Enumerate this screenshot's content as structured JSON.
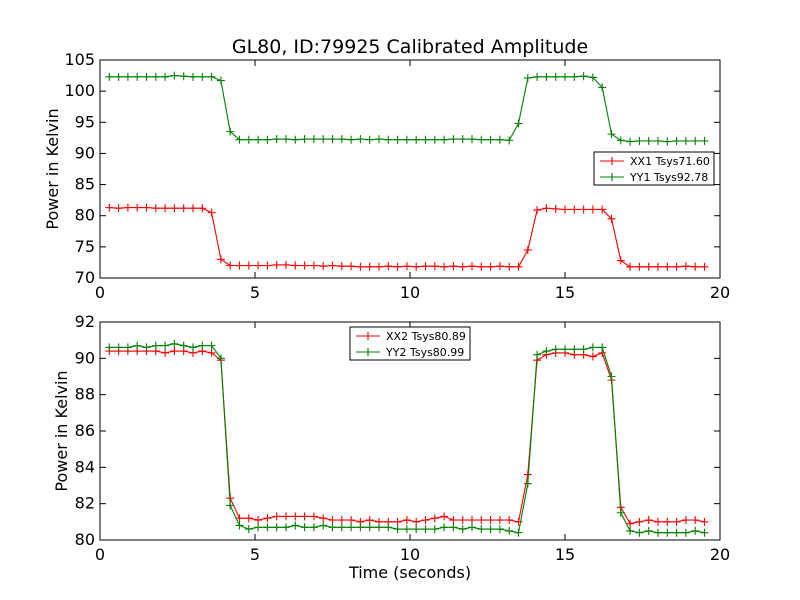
{
  "figure": {
    "title": "GL80, ID:79925 Calibrated Amplitude",
    "background": "#ffffff"
  },
  "chart_data": [
    {
      "type": "line",
      "title": "GL80, ID:79925 Calibrated Amplitude",
      "xlabel": "",
      "ylabel": "Power in Kelvin",
      "xlim": [
        0,
        20
      ],
      "ylim": [
        70,
        105
      ],
      "xticks": [
        0,
        5,
        10,
        15,
        20
      ],
      "yticks": [
        70,
        75,
        80,
        85,
        90,
        95,
        100,
        105
      ],
      "grid": false,
      "legend_position": "center-right",
      "x": [
        0.3,
        0.6,
        0.9,
        1.2,
        1.5,
        1.8,
        2.1,
        2.4,
        2.7,
        3.0,
        3.3,
        3.6,
        3.9,
        4.2,
        4.5,
        4.8,
        5.1,
        5.4,
        5.7,
        6.0,
        6.3,
        6.6,
        6.9,
        7.2,
        7.5,
        7.8,
        8.1,
        8.4,
        8.7,
        9.0,
        9.3,
        9.6,
        9.9,
        10.2,
        10.5,
        10.8,
        11.1,
        11.4,
        11.7,
        12.0,
        12.3,
        12.6,
        12.9,
        13.2,
        13.5,
        13.8,
        14.1,
        14.4,
        14.7,
        15.0,
        15.3,
        15.6,
        15.9,
        16.2,
        16.5,
        16.8,
        17.1,
        17.4,
        17.7,
        18.0,
        18.3,
        18.6,
        18.9,
        19.2,
        19.5
      ],
      "series": [
        {
          "name": "XX1 Tsys71.60",
          "color": "#ff0000",
          "values": [
            81.3,
            81.2,
            81.3,
            81.3,
            81.3,
            81.2,
            81.2,
            81.2,
            81.2,
            81.2,
            81.2,
            80.5,
            73.0,
            72.0,
            72.0,
            72.0,
            72.0,
            72.0,
            72.1,
            72.1,
            72.0,
            72.0,
            72.0,
            71.9,
            72.0,
            71.9,
            71.9,
            71.8,
            71.8,
            71.8,
            71.9,
            71.8,
            71.9,
            71.8,
            71.9,
            71.9,
            71.8,
            71.9,
            71.8,
            71.9,
            71.8,
            71.8,
            71.9,
            71.8,
            71.8,
            74.5,
            80.9,
            81.2,
            81.1,
            81.0,
            81.0,
            81.0,
            81.0,
            81.0,
            79.5,
            72.8,
            71.8,
            71.8,
            71.8,
            71.8,
            71.8,
            71.8,
            71.9,
            71.8,
            71.8
          ]
        },
        {
          "name": "YY1 Tsys92.78",
          "color": "#008000",
          "values": [
            102.3,
            102.3,
            102.3,
            102.3,
            102.3,
            102.3,
            102.3,
            102.5,
            102.4,
            102.3,
            102.3,
            102.3,
            101.7,
            93.5,
            92.2,
            92.2,
            92.2,
            92.2,
            92.3,
            92.3,
            92.2,
            92.3,
            92.3,
            92.3,
            92.3,
            92.3,
            92.2,
            92.3,
            92.2,
            92.3,
            92.2,
            92.2,
            92.2,
            92.2,
            92.2,
            92.2,
            92.2,
            92.3,
            92.3,
            92.3,
            92.2,
            92.2,
            92.2,
            92.1,
            94.8,
            102.1,
            102.3,
            102.3,
            102.3,
            102.3,
            102.3,
            102.4,
            102.2,
            100.6,
            93.1,
            92.1,
            91.9,
            92.0,
            92.0,
            92.0,
            91.9,
            92.0,
            92.0,
            92.0,
            92.0
          ]
        }
      ]
    },
    {
      "type": "line",
      "title": "",
      "xlabel": "Time (seconds)",
      "ylabel": "Power in Kelvin",
      "xlim": [
        0,
        20
      ],
      "ylim": [
        80,
        92
      ],
      "xticks": [
        0,
        5,
        10,
        15,
        20
      ],
      "yticks": [
        80,
        82,
        84,
        86,
        88,
        90,
        92
      ],
      "grid": false,
      "legend_position": "top-center",
      "x": [
        0.3,
        0.6,
        0.9,
        1.2,
        1.5,
        1.8,
        2.1,
        2.4,
        2.7,
        3.0,
        3.3,
        3.6,
        3.9,
        4.2,
        4.5,
        4.8,
        5.1,
        5.4,
        5.7,
        6.0,
        6.3,
        6.6,
        6.9,
        7.2,
        7.5,
        7.8,
        8.1,
        8.4,
        8.7,
        9.0,
        9.3,
        9.6,
        9.9,
        10.2,
        10.5,
        10.8,
        11.1,
        11.4,
        11.7,
        12.0,
        12.3,
        12.6,
        12.9,
        13.2,
        13.5,
        13.8,
        14.1,
        14.4,
        14.7,
        15.0,
        15.3,
        15.6,
        15.9,
        16.2,
        16.5,
        16.8,
        17.1,
        17.4,
        17.7,
        18.0,
        18.3,
        18.6,
        18.9,
        19.2,
        19.5
      ],
      "series": [
        {
          "name": "XX2 Tsys80.89",
          "color": "#ff0000",
          "values": [
            90.4,
            90.4,
            90.4,
            90.4,
            90.4,
            90.4,
            90.3,
            90.4,
            90.4,
            90.3,
            90.4,
            90.3,
            89.9,
            82.3,
            81.2,
            81.2,
            81.1,
            81.2,
            81.3,
            81.3,
            81.3,
            81.3,
            81.3,
            81.2,
            81.1,
            81.1,
            81.1,
            81.0,
            81.1,
            81.0,
            81.0,
            81.0,
            81.1,
            81.0,
            81.1,
            81.2,
            81.3,
            81.1,
            81.1,
            81.1,
            81.1,
            81.1,
            81.1,
            81.1,
            81.0,
            83.6,
            89.9,
            90.2,
            90.3,
            90.3,
            90.2,
            90.2,
            90.1,
            90.3,
            88.8,
            81.8,
            80.9,
            81.0,
            81.1,
            81.0,
            81.0,
            81.0,
            81.1,
            81.1,
            81.0
          ]
        },
        {
          "name": "YY2 Tsys80.99",
          "color": "#008000",
          "values": [
            90.6,
            90.6,
            90.6,
            90.7,
            90.6,
            90.7,
            90.7,
            90.8,
            90.7,
            90.6,
            90.7,
            90.7,
            90.0,
            81.9,
            80.8,
            80.6,
            80.7,
            80.7,
            80.7,
            80.7,
            80.8,
            80.7,
            80.7,
            80.8,
            80.7,
            80.7,
            80.7,
            80.7,
            80.7,
            80.7,
            80.7,
            80.6,
            80.6,
            80.6,
            80.6,
            80.6,
            80.7,
            80.7,
            80.6,
            80.7,
            80.6,
            80.6,
            80.6,
            80.5,
            80.4,
            83.1,
            90.2,
            90.4,
            90.5,
            90.5,
            90.5,
            90.5,
            90.6,
            90.6,
            89.0,
            81.5,
            80.5,
            80.4,
            80.5,
            80.4,
            80.4,
            80.4,
            80.4,
            80.5,
            80.4
          ]
        }
      ]
    }
  ]
}
